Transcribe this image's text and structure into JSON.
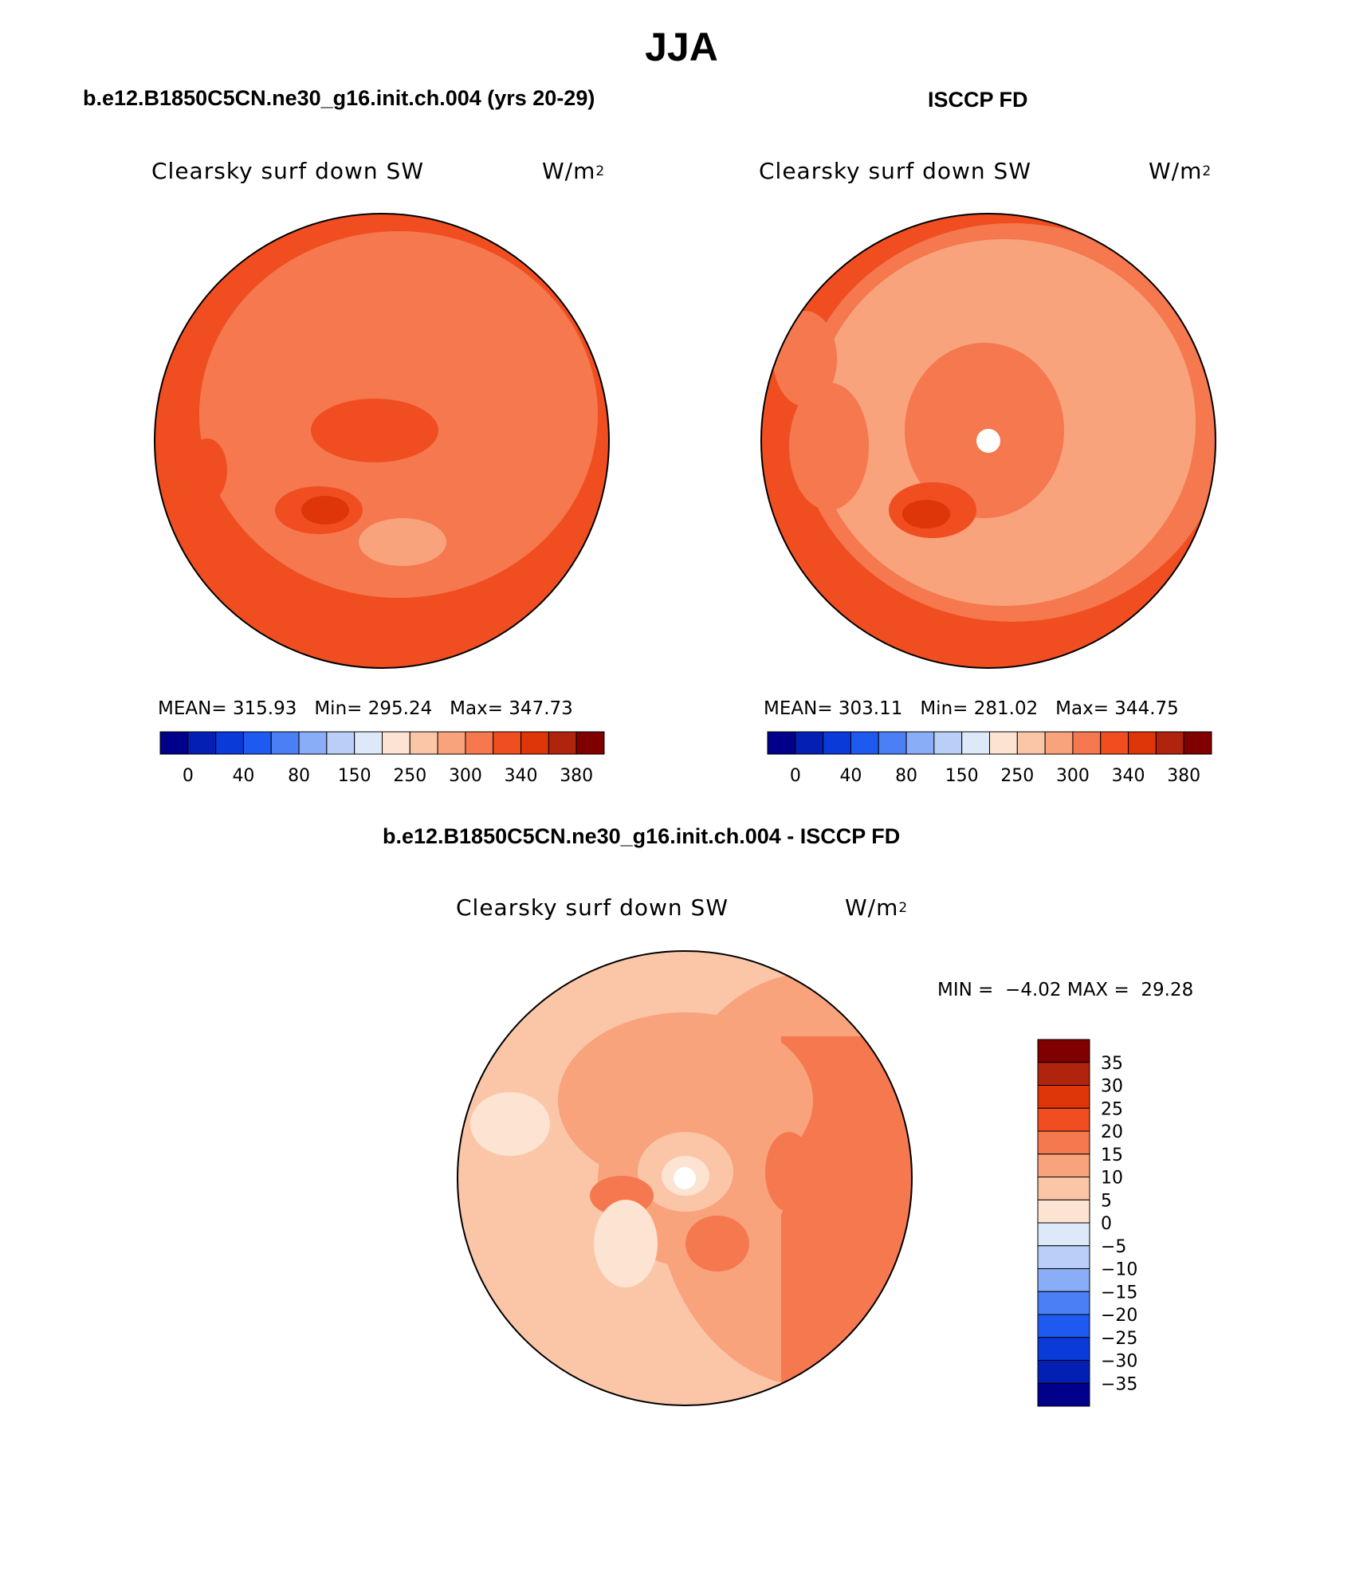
{
  "title": "JJA",
  "panels": [
    {
      "case_title": "b.e12.B1850C5CN.ne30_g16.init.ch.004 (yrs 20-29)",
      "variable": "Clearsky surf down SW",
      "units_base": "W/m",
      "units_exp": "2",
      "stats": {
        "mean_label": "MEAN=",
        "mean": "315.93",
        "min_label": "Min=",
        "min": "295.24",
        "max_label": "Max=",
        "max": "347.73"
      }
    },
    {
      "case_title": "ISCCP FD",
      "variable": "Clearsky surf down SW",
      "units_base": "W/m",
      "units_exp": "2",
      "stats": {
        "mean_label": "MEAN=",
        "mean": "303.11",
        "min_label": "Min=",
        "min": "281.02",
        "max_label": "Max=",
        "max": "344.75"
      }
    },
    {
      "case_title": "b.e12.B1850C5CN.ne30_g16.init.ch.004 - ISCCP FD",
      "variable": "Clearsky surf down SW",
      "units_base": "W/m",
      "units_exp": "2",
      "stats": {
        "min_label": "MIN =",
        "min": "−4.02",
        "max_label": "MAX =",
        "max": "29.28"
      }
    }
  ],
  "colorbar_horizontal": {
    "colors": [
      "#00008b",
      "#0420b4",
      "#0a3ad8",
      "#1f5af0",
      "#4a7ff5",
      "#8aadf7",
      "#b9cff7",
      "#dde9f8",
      "#fde3d2",
      "#fbc6a8",
      "#f8a37c",
      "#f5784e",
      "#f04e20",
      "#de3509",
      "#b0230c",
      "#800000"
    ],
    "labels": [
      "0",
      "40",
      "80",
      "150",
      "250",
      "300",
      "340",
      "380"
    ]
  },
  "colorbar_vertical": {
    "colors": [
      "#00008b",
      "#0420b4",
      "#0a3ad8",
      "#1f5af0",
      "#4a7ff5",
      "#8aadf7",
      "#b9cff7",
      "#dde9f8",
      "#fde3d2",
      "#fbc6a8",
      "#f8a37c",
      "#f5784e",
      "#f04e20",
      "#de3509",
      "#b0230c",
      "#800000"
    ],
    "labels": [
      "35",
      "30",
      "25",
      "20",
      "15",
      "10",
      "5",
      "0",
      "−5",
      "−10",
      "−15",
      "−20",
      "−25",
      "−30",
      "−35"
    ]
  }
}
